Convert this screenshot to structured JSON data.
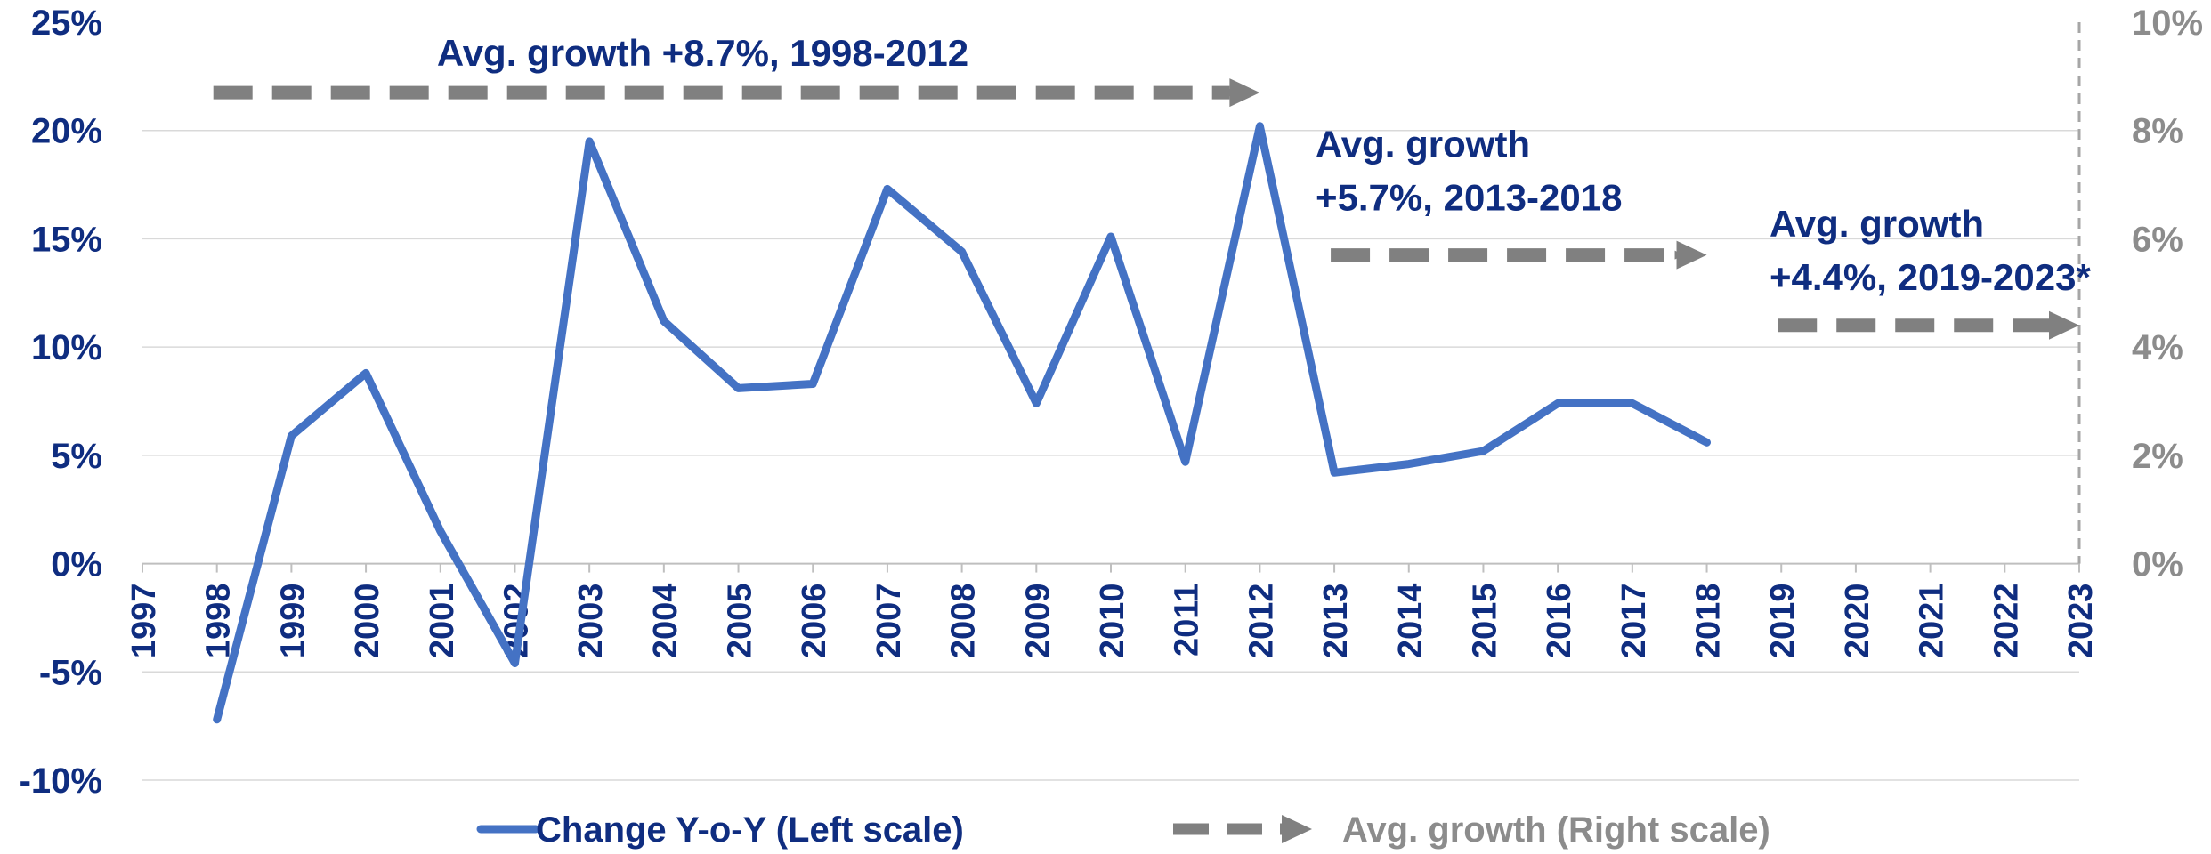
{
  "chart_data": {
    "type": "line",
    "title": "",
    "x": [
      "1997",
      "1998",
      "1999",
      "2000",
      "2001",
      "2002",
      "2003",
      "2004",
      "2005",
      "2006",
      "2007",
      "2008",
      "2009",
      "2010",
      "2011",
      "2012",
      "2013",
      "2014",
      "2015",
      "2016",
      "2017",
      "2018",
      "2019",
      "2020",
      "2021",
      "2022",
      "2023"
    ],
    "left_axis": {
      "ylim": [
        -10,
        25
      ],
      "ticks": [
        -10,
        -5,
        0,
        5,
        10,
        15,
        20,
        25
      ],
      "tick_labels": [
        "-10%",
        "-5%",
        "0%",
        "5%",
        "10%",
        "15%",
        "20%",
        "25%"
      ]
    },
    "right_axis": {
      "ylim": [
        -4,
        10
      ],
      "ticks": [
        0,
        2,
        4,
        6,
        8,
        10
      ],
      "tick_labels": [
        "0%",
        "2%",
        "4%",
        "6%",
        "8%",
        "10%"
      ]
    },
    "grid": true,
    "series": [
      {
        "name": "Change Y-o-Y (Left scale)",
        "axis": "left",
        "color": "#4472c4",
        "points": [
          {
            "x": "1998",
            "y": -7.2
          },
          {
            "x": "1999",
            "y": 5.9
          },
          {
            "x": "2000",
            "y": 8.8
          },
          {
            "x": "2001",
            "y": 1.5
          },
          {
            "x": "2002",
            "y": -4.6
          },
          {
            "x": "2003",
            "y": 19.5
          },
          {
            "x": "2004",
            "y": 11.2
          },
          {
            "x": "2005",
            "y": 8.1
          },
          {
            "x": "2006",
            "y": 8.3
          },
          {
            "x": "2007",
            "y": 17.3
          },
          {
            "x": "2008",
            "y": 14.4
          },
          {
            "x": "2009",
            "y": 7.4
          },
          {
            "x": "2010",
            "y": 15.1
          },
          {
            "x": "2011",
            "y": 4.7
          },
          {
            "x": "2012",
            "y": 20.2
          },
          {
            "x": "2013",
            "y": 4.2
          },
          {
            "x": "2014",
            "y": 4.6
          },
          {
            "x": "2015",
            "y": 5.2
          },
          {
            "x": "2016",
            "y": 7.4
          },
          {
            "x": "2017",
            "y": 7.4
          },
          {
            "x": "2018",
            "y": 5.6
          }
        ]
      },
      {
        "name": "Avg. growth (Right scale)",
        "axis": "right",
        "color": "#808080",
        "style": "dashed-arrow",
        "segments": [
          {
            "from": "1998",
            "to": "2012",
            "y": 8.7,
            "label_line1": "Avg. growth +8.7%, 1998-2012",
            "label_line2": ""
          },
          {
            "from": "2013",
            "to": "2018",
            "y": 5.7,
            "label_line1": "Avg. growth",
            "label_line2": "+5.7%, 2013-2018"
          },
          {
            "from": "2019",
            "to": "2023",
            "y": 4.4,
            "label_line1": "Avg. growth",
            "label_line2": "+4.4%, 2019-2023*"
          }
        ]
      }
    ],
    "legend": {
      "position": "bottom",
      "items": [
        "Change Y-o-Y (Left scale)",
        "Avg. growth (Right scale)"
      ]
    }
  }
}
